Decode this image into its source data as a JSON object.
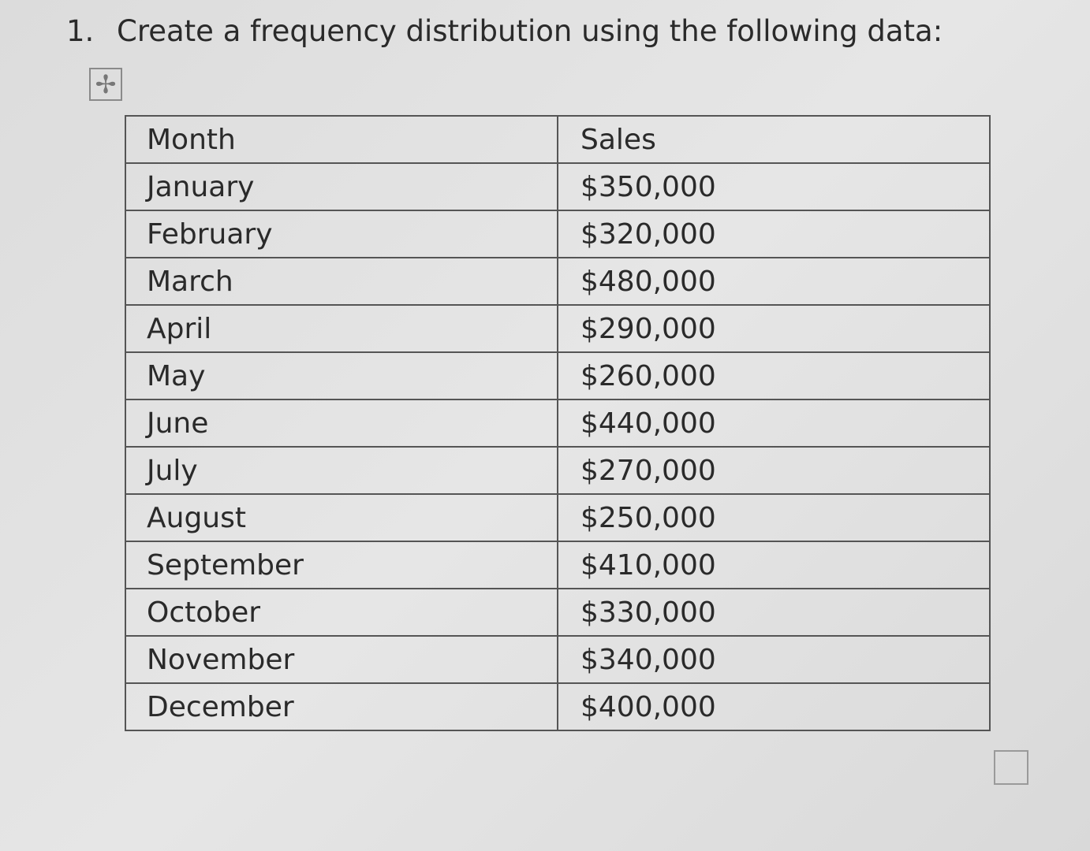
{
  "question": {
    "number": "1.",
    "text": "Create a frequency distribution using the following data:"
  },
  "table": {
    "header": [
      "Month",
      "Sales"
    ],
    "rows": [
      [
        "January",
        "$350,000"
      ],
      [
        "February",
        "$320,000"
      ],
      [
        "March",
        "$480,000"
      ],
      [
        "April",
        "$290,000"
      ],
      [
        "May",
        "$260,000"
      ],
      [
        "June",
        "$440,000"
      ],
      [
        "July",
        "$270,000"
      ],
      [
        "August",
        "$250,000"
      ],
      [
        "September",
        "$410,000"
      ],
      [
        "October",
        "$330,000"
      ],
      [
        "November",
        "$340,000"
      ],
      [
        "December",
        "$400,000"
      ]
    ]
  }
}
